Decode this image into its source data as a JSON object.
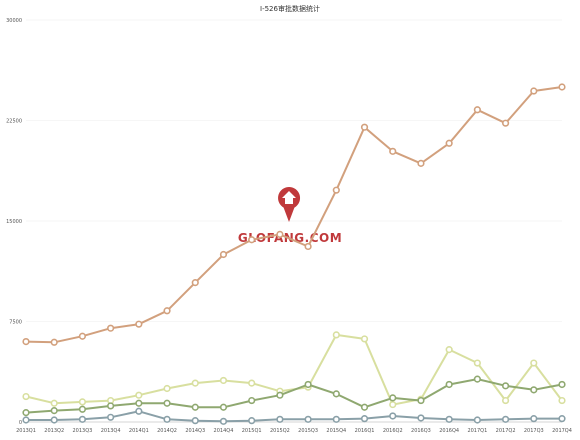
{
  "chart_data": {
    "type": "line",
    "title": "I-526审批数据统计",
    "xlabel": "",
    "ylabel": "",
    "ylim": [
      0,
      30000
    ],
    "yticks": [
      0,
      7500,
      15000,
      22500,
      30000
    ],
    "grid": true,
    "legend": "none",
    "categories": [
      "2013Q1",
      "2013Q2",
      "2013Q3",
      "2013Q4",
      "2014Q1",
      "2014Q2",
      "2014Q3",
      "2014Q4",
      "2015Q1",
      "2015Q2",
      "2015Q3",
      "2015Q4",
      "2016Q1",
      "2016Q2",
      "2016Q3",
      "2016Q4",
      "2017Q1",
      "2017Q2",
      "2017Q3",
      "2017Q4"
    ],
    "series": [
      {
        "color": "#d2a07d",
        "values": [
          6000,
          5950,
          6400,
          7000,
          7300,
          8300,
          10400,
          12500,
          13600,
          14000,
          13100,
          17300,
          22000,
          20200,
          19300,
          20800,
          23300,
          22300,
          24700,
          25000
        ]
      },
      {
        "color": "#d8df9f",
        "values": [
          1900,
          1400,
          1500,
          1600,
          2000,
          2500,
          2900,
          3100,
          2900,
          2300,
          2600,
          6500,
          6200,
          1300,
          1700,
          5400,
          4400,
          1600,
          4400,
          1600
        ]
      },
      {
        "color": "#8fa870",
        "values": [
          700,
          850,
          950,
          1200,
          1400,
          1400,
          1100,
          1100,
          1600,
          2000,
          2800,
          2100,
          1100,
          1800,
          1600,
          2800,
          3200,
          2700,
          2400,
          2800
        ]
      },
      {
        "color": "#8aa0a8",
        "values": [
          150,
          150,
          200,
          350,
          800,
          200,
          100,
          50,
          100,
          200,
          200,
          200,
          250,
          450,
          300,
          200,
          150,
          200,
          250,
          250
        ]
      }
    ]
  },
  "watermark": {
    "text": "GLOFANG.COM"
  }
}
